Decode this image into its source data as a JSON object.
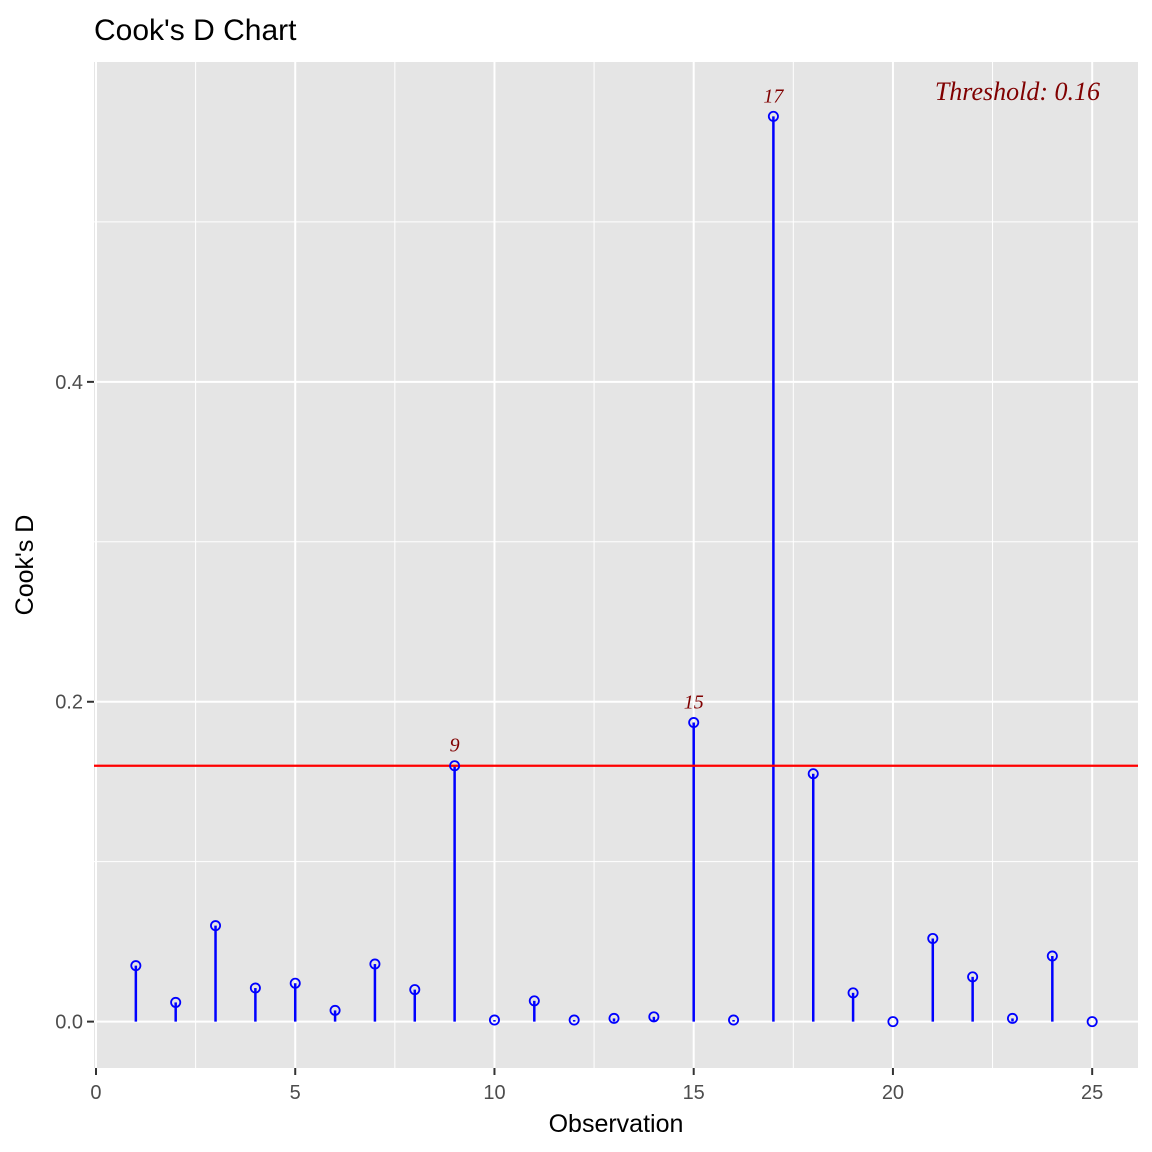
{
  "chart_data": {
    "type": "scatter",
    "subtype": "lollipop",
    "title": "Cook's D Chart",
    "xlabel": "Observation",
    "ylabel": "Cook's D",
    "x_ticks": [
      0,
      5,
      10,
      15,
      20,
      25
    ],
    "y_ticks": [
      "0.0",
      "0.2",
      "0.4"
    ],
    "y_tick_values": [
      0.0,
      0.2,
      0.4
    ],
    "xlim": [
      -0.05,
      26.15
    ],
    "ylim": [
      -0.029,
      0.6
    ],
    "grid": true,
    "series": [
      {
        "x": [
          1,
          2,
          3,
          4,
          5,
          6,
          7,
          8,
          9,
          10,
          11,
          12,
          13,
          14,
          15,
          16,
          17,
          18,
          19,
          20,
          21,
          22,
          23,
          24,
          25
        ],
        "y": [
          0.035,
          0.012,
          0.06,
          0.021,
          0.024,
          0.007,
          0.036,
          0.02,
          0.16,
          0.001,
          0.013,
          0.001,
          0.002,
          0.003,
          0.187,
          0.001,
          0.566,
          0.155,
          0.018,
          0.0,
          0.052,
          0.028,
          0.002,
          0.041,
          0.0
        ]
      }
    ],
    "threshold": 0.16,
    "threshold_label": "Threshold: 0.16",
    "labeled_points": [
      {
        "x": 9,
        "label": "9"
      },
      {
        "x": 15,
        "label": "15"
      },
      {
        "x": 17,
        "label": "17"
      }
    ],
    "colors": {
      "panel": "#e5e5e5",
      "grid": "#ffffff",
      "points": "#0000ff",
      "threshold": "#ff0000",
      "labels": "#800000"
    }
  }
}
